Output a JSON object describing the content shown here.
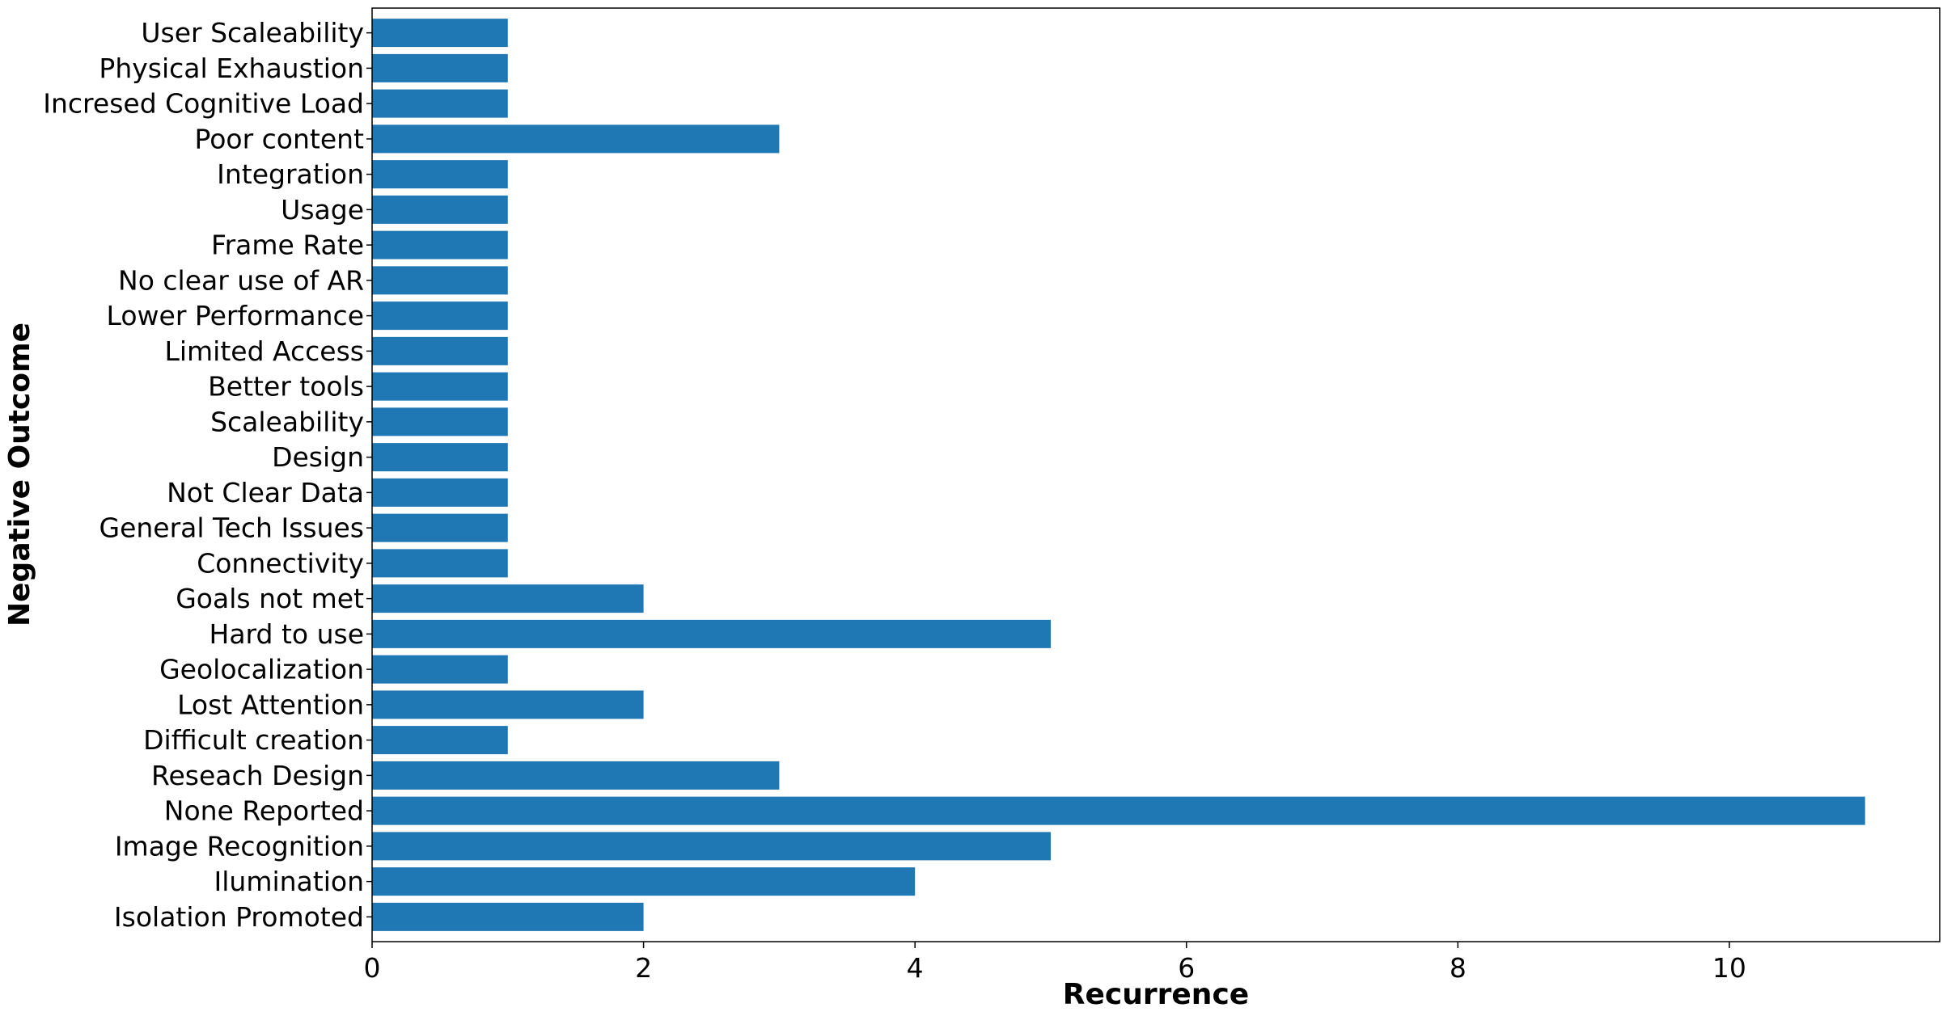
{
  "chart_data": {
    "type": "bar",
    "orientation": "horizontal",
    "title": "",
    "xlabel": "Recurrence",
    "ylabel": "Negative Outcome",
    "xlim": [
      0,
      11.55
    ],
    "xticks": [
      "0",
      "2",
      "4",
      "6",
      "8",
      "10"
    ],
    "grid": false,
    "bar_color": "#1f77b4",
    "categories": [
      "Isolation Promoted",
      "Ilumination",
      "Image Recognition",
      "None Reported",
      "Reseach Design",
      "Difficult creation",
      "Lost Attention",
      "Geolocalization",
      "Hard to use",
      "Goals not met",
      "Connectivity",
      "General Tech Issues",
      "Not Clear Data",
      "Design",
      "Scaleability",
      "Better tools",
      "Limited Access",
      "Lower Performance",
      "No clear use of AR",
      "Frame Rate",
      "Usage",
      "Integration",
      "Poor content",
      "Incresed Cognitive Load",
      "Physical Exhaustion",
      "User Scaleability"
    ],
    "values": [
      2,
      4,
      5,
      11,
      3,
      1,
      2,
      1,
      5,
      2,
      1,
      1,
      1,
      1,
      1,
      1,
      1,
      1,
      1,
      1,
      1,
      1,
      3,
      1,
      1,
      1
    ]
  }
}
